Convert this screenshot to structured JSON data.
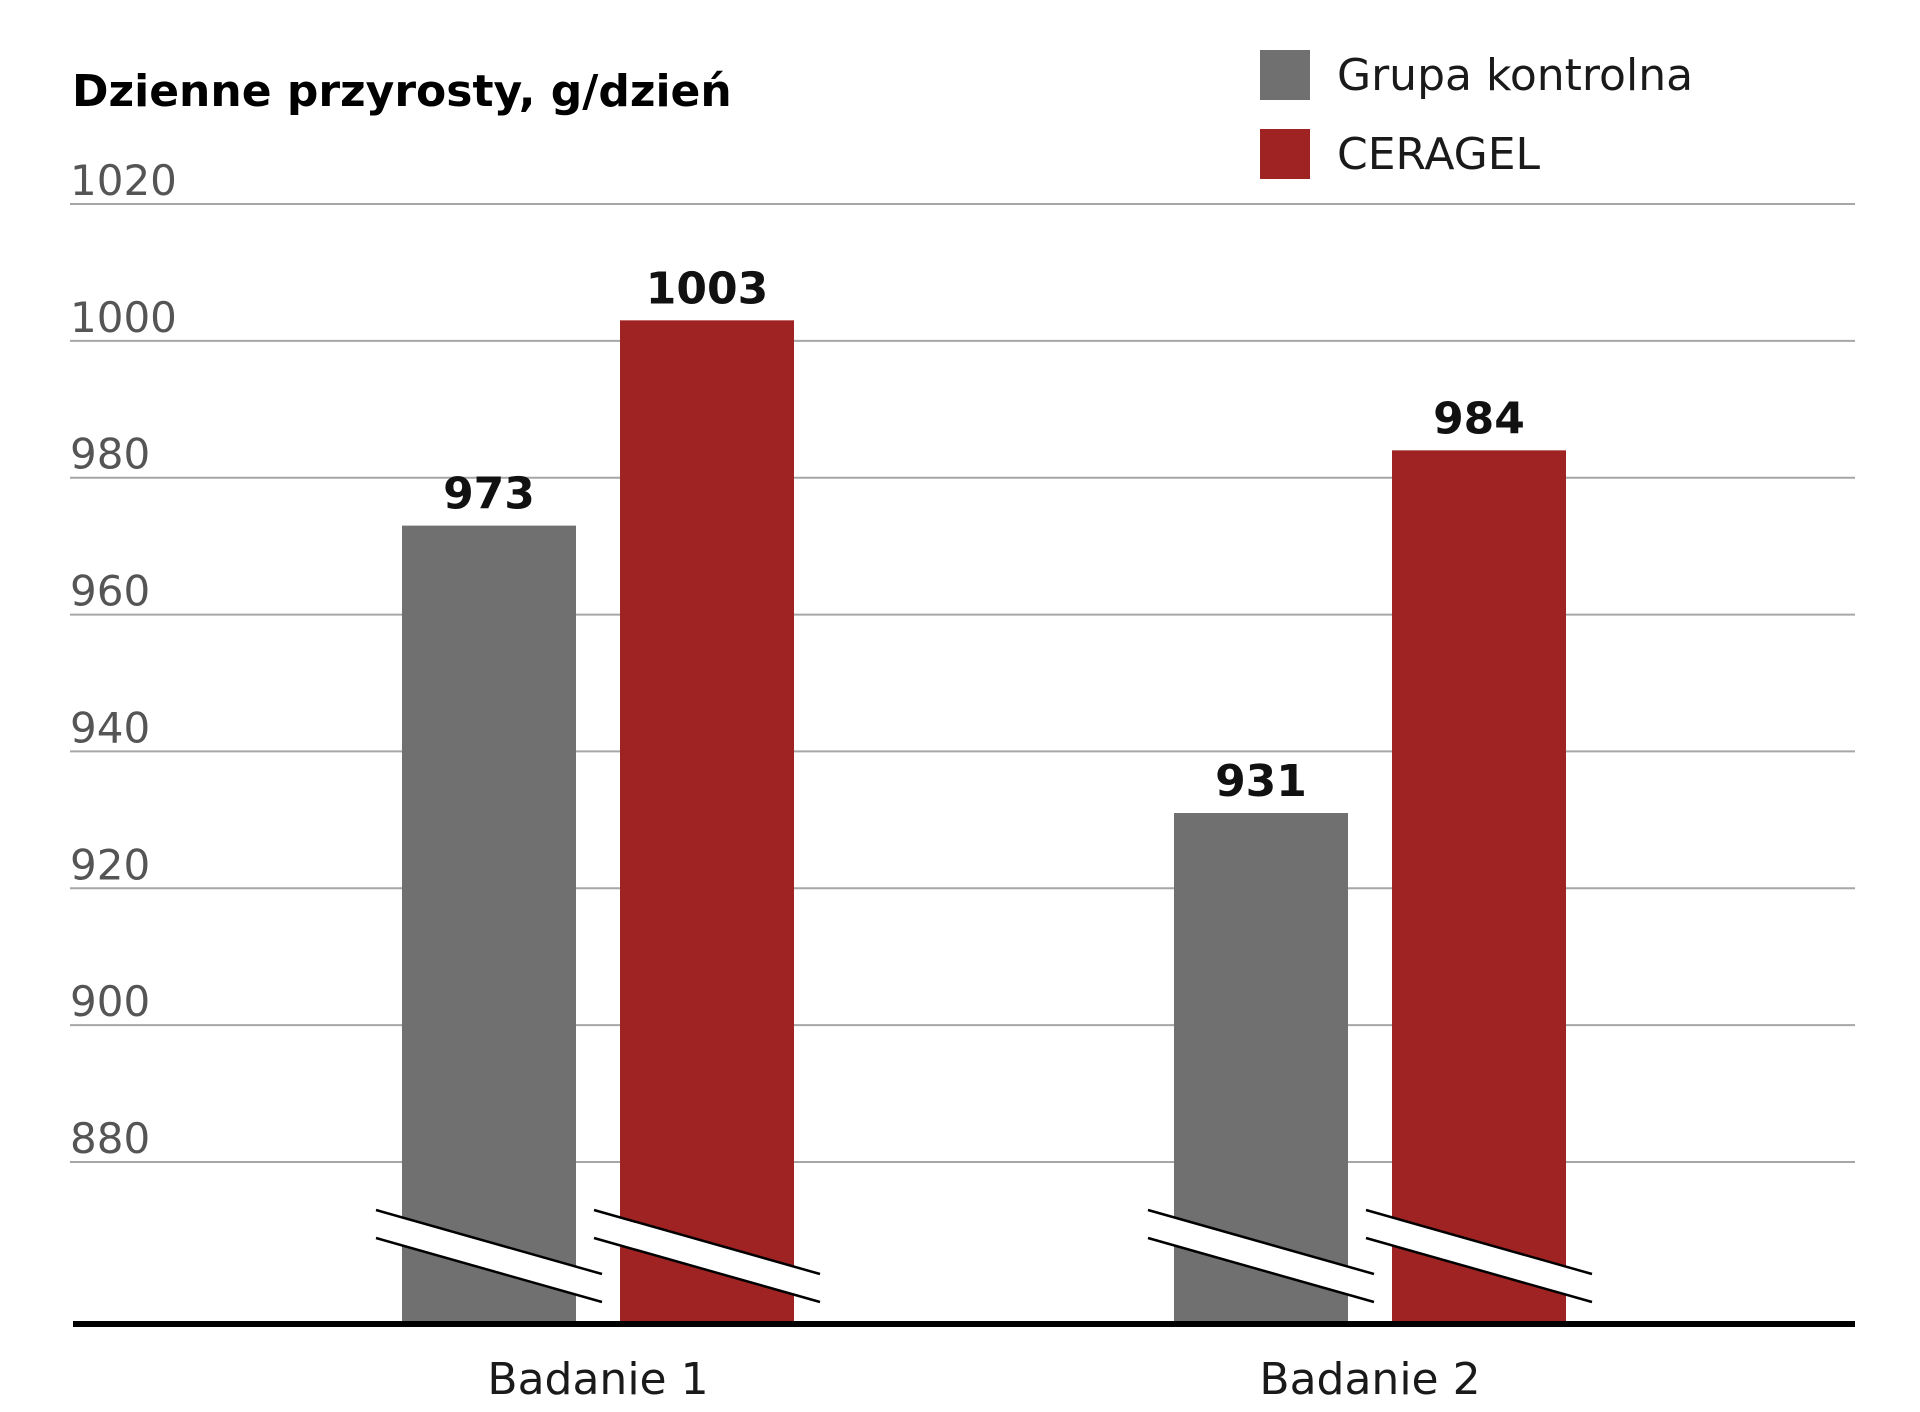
{
  "chart_data": {
    "type": "bar",
    "title": "Dzienne przyrosty, g/dzień",
    "categories": [
      "Badanie 1",
      "Badanie 2"
    ],
    "series": [
      {
        "name": "Grupa kontrolna",
        "values": [
          973,
          931
        ],
        "color": "#707070"
      },
      {
        "name": "CERAGEL",
        "values": [
          1003,
          984
        ],
        "color": "#a02323"
      }
    ],
    "y_ticks": [
      880,
      900,
      920,
      940,
      960,
      980,
      1000,
      1020
    ],
    "ylim": [
      880,
      1020
    ],
    "axis_break": true,
    "grid": true,
    "legend_position": "top-right",
    "gridline_color": "#a6a6a6",
    "axis_color": "#000000"
  }
}
